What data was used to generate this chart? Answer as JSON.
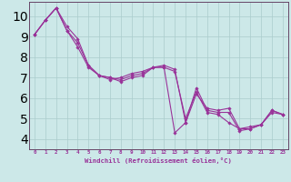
{
  "xlabel": "Windchill (Refroidissement éolien,°C)",
  "line_color": "#993399",
  "bg_color": "#cce8e8",
  "grid_color": "#aacccc",
  "ylim": [
    3.5,
    10.7
  ],
  "xlim": [
    -0.5,
    23.5
  ],
  "yticks": [
    4,
    5,
    6,
    7,
    8,
    9,
    10
  ],
  "xticks": [
    0,
    1,
    2,
    3,
    4,
    5,
    6,
    7,
    8,
    9,
    10,
    11,
    12,
    13,
    14,
    15,
    16,
    17,
    18,
    19,
    20,
    21,
    22,
    23
  ],
  "lines": [
    [
      9.1,
      9.8,
      10.4,
      9.5,
      8.9,
      7.6,
      7.1,
      7.0,
      6.8,
      7.0,
      7.1,
      7.5,
      7.6,
      7.4,
      4.8,
      6.5,
      5.4,
      5.3,
      5.3,
      4.4,
      4.5,
      4.7,
      5.4,
      5.2
    ],
    [
      9.1,
      9.8,
      10.4,
      9.3,
      8.5,
      7.5,
      7.1,
      6.9,
      7.0,
      7.2,
      7.3,
      7.5,
      7.5,
      7.3,
      5.0,
      6.3,
      5.3,
      5.2,
      4.8,
      4.5,
      4.5,
      4.7,
      5.4,
      5.2
    ],
    [
      9.1,
      9.8,
      10.4,
      9.3,
      8.7,
      7.6,
      7.1,
      7.0,
      6.9,
      7.1,
      7.2,
      7.5,
      7.5,
      4.3,
      4.8,
      6.2,
      5.5,
      5.4,
      5.5,
      4.5,
      4.6,
      4.7,
      5.3,
      5.2
    ]
  ]
}
